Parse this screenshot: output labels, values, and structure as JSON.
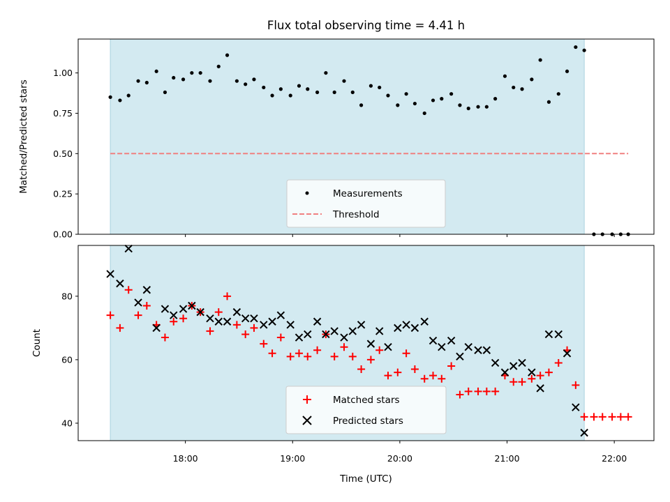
{
  "chart_data": [
    {
      "type": "scatter",
      "panel": "top",
      "title": "Flux total observing time = 4.41 h",
      "xlabel": "",
      "ylabel": "Matched/Predicted stars",
      "xlim": [
        17.0,
        22.37
      ],
      "ylim": [
        0.0,
        1.21
      ],
      "yticks": [
        0.0,
        0.25,
        0.5,
        0.75,
        1.0
      ],
      "ytick_labels": [
        "0.00",
        "0.25",
        "0.50",
        "0.75",
        "1.00"
      ],
      "shaded_span": [
        17.3,
        21.72
      ],
      "shade_color": "#d3eaf1",
      "threshold": {
        "name": "Threshold",
        "y": 0.5,
        "x_range": [
          17.3,
          22.13
        ],
        "color": "#f08080",
        "style": "dashed"
      },
      "series": [
        {
          "name": "Measurements",
          "marker": "dot",
          "color": "#000000",
          "x": [
            17.3,
            17.39,
            17.47,
            17.56,
            17.64,
            17.73,
            17.81,
            17.89,
            17.98,
            18.06,
            18.14,
            18.23,
            18.31,
            18.39,
            18.48,
            18.56,
            18.64,
            18.73,
            18.81,
            18.89,
            18.98,
            19.06,
            19.14,
            19.23,
            19.31,
            19.39,
            19.48,
            19.56,
            19.64,
            19.73,
            19.81,
            19.89,
            19.98,
            20.06,
            20.14,
            20.23,
            20.31,
            20.39,
            20.48,
            20.56,
            20.64,
            20.73,
            20.81,
            20.89,
            20.98,
            21.06,
            21.14,
            21.23,
            21.31,
            21.39,
            21.48,
            21.56,
            21.64,
            21.72,
            21.81,
            21.89,
            21.98,
            22.06,
            22.13
          ],
          "y": [
            0.85,
            0.83,
            0.86,
            0.95,
            0.94,
            1.01,
            0.88,
            0.97,
            0.96,
            1.0,
            1.0,
            0.95,
            1.04,
            1.11,
            0.95,
            0.93,
            0.96,
            0.91,
            0.86,
            0.9,
            0.86,
            0.92,
            0.9,
            0.88,
            1.0,
            0.88,
            0.95,
            0.88,
            0.8,
            0.92,
            0.91,
            0.86,
            0.8,
            0.87,
            0.81,
            0.75,
            0.83,
            0.84,
            0.87,
            0.8,
            0.78,
            0.79,
            0.79,
            0.84,
            0.98,
            0.91,
            0.9,
            0.96,
            1.08,
            0.82,
            0.87,
            1.01,
            1.16,
            1.14,
            0.0,
            0.0,
            0.0,
            0.0,
            0.0
          ]
        }
      ],
      "legend": {
        "location": "lower-center",
        "entries": [
          "Measurements",
          "Threshold"
        ]
      }
    },
    {
      "type": "scatter",
      "panel": "bottom",
      "title": "",
      "xlabel": "Time (UTC)",
      "ylabel": "Count",
      "xlim": [
        17.0,
        22.37
      ],
      "ylim": [
        34.5,
        96.0
      ],
      "yticks": [
        40,
        60,
        80
      ],
      "ytick_labels": [
        "40",
        "60",
        "80"
      ],
      "xticks": [
        18,
        19,
        20,
        21,
        22
      ],
      "xtick_labels": [
        "18:00",
        "19:00",
        "20:00",
        "21:00",
        "22:00"
      ],
      "shaded_span": [
        17.3,
        21.72
      ],
      "series": [
        {
          "name": "Matched stars",
          "marker": "plus",
          "color": "#ff0000",
          "x": [
            17.3,
            17.39,
            17.47,
            17.56,
            17.64,
            17.73,
            17.81,
            17.89,
            17.98,
            18.06,
            18.14,
            18.23,
            18.31,
            18.39,
            18.48,
            18.56,
            18.64,
            18.73,
            18.81,
            18.89,
            18.98,
            19.06,
            19.14,
            19.23,
            19.31,
            19.39,
            19.48,
            19.56,
            19.64,
            19.73,
            19.81,
            19.89,
            19.98,
            20.06,
            20.14,
            20.23,
            20.31,
            20.39,
            20.48,
            20.56,
            20.64,
            20.73,
            20.81,
            20.89,
            20.98,
            21.06,
            21.14,
            21.23,
            21.31,
            21.39,
            21.48,
            21.56,
            21.64,
            21.72,
            21.81,
            21.89,
            21.98,
            22.06,
            22.13
          ],
          "y": [
            74,
            70,
            82,
            74,
            77,
            71,
            67,
            72,
            73,
            77,
            75,
            69,
            75,
            80,
            71,
            68,
            70,
            65,
            62,
            67,
            61,
            62,
            61,
            63,
            68,
            61,
            64,
            61,
            57,
            60,
            63,
            55,
            56,
            62,
            57,
            54,
            55,
            54,
            58,
            49,
            50,
            50,
            50,
            50,
            55,
            53,
            53,
            54,
            55,
            56,
            59,
            63,
            52,
            42,
            42,
            42,
            42,
            42,
            42
          ]
        },
        {
          "name": "Predicted stars",
          "marker": "x",
          "color": "#000000",
          "x": [
            17.3,
            17.39,
            17.47,
            17.56,
            17.64,
            17.73,
            17.81,
            17.89,
            17.98,
            18.06,
            18.14,
            18.23,
            18.31,
            18.39,
            18.48,
            18.56,
            18.64,
            18.73,
            18.81,
            18.89,
            18.98,
            19.06,
            19.14,
            19.23,
            19.31,
            19.39,
            19.48,
            19.56,
            19.64,
            19.73,
            19.81,
            19.89,
            19.98,
            20.06,
            20.14,
            20.23,
            20.31,
            20.39,
            20.48,
            20.56,
            20.64,
            20.73,
            20.81,
            20.89,
            20.98,
            21.06,
            21.14,
            21.23,
            21.31,
            21.39,
            21.48,
            21.56,
            21.64,
            21.72
          ],
          "y": [
            87,
            84,
            95,
            78,
            82,
            70,
            76,
            74,
            76,
            77,
            75,
            73,
            72,
            72,
            75,
            73,
            73,
            71,
            72,
            74,
            71,
            67,
            68,
            72,
            68,
            69,
            67,
            69,
            71,
            65,
            69,
            64,
            70,
            71,
            70,
            72,
            66,
            64,
            66,
            61,
            64,
            63,
            63,
            59,
            56,
            58,
            59,
            56,
            51,
            68,
            68,
            62,
            45,
            37
          ]
        }
      ],
      "legend": {
        "location": "lower-center",
        "entries": [
          "Matched stars",
          "Predicted stars"
        ]
      }
    }
  ]
}
